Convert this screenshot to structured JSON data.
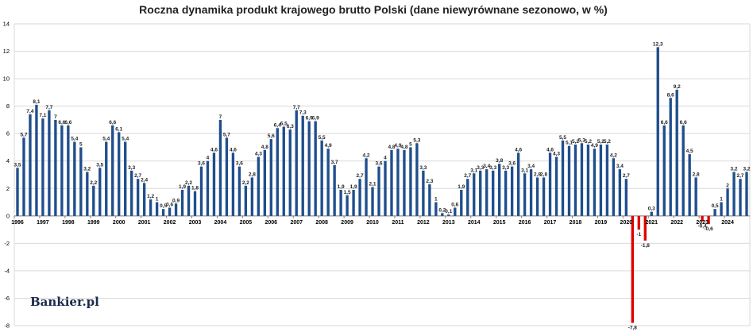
{
  "chart_data": {
    "type": "bar",
    "title": "Roczna dynamika produkt krajowego brutto Polski (dane niewyrównane sezonowo, w %)",
    "ylim": [
      -8,
      14
    ],
    "yticks": [
      -8,
      -6,
      -4,
      -2,
      0,
      2,
      4,
      6,
      8,
      10,
      12,
      14
    ],
    "grid": true,
    "colors": {
      "positive": "#1f4e8c",
      "negative": "#e00000"
    },
    "years": [
      "1996",
      "1997",
      "1998",
      "1999",
      "2000",
      "2001",
      "2002",
      "2003",
      "2004",
      "2005",
      "2006",
      "2007",
      "2008",
      "2009",
      "2010",
      "2011",
      "2012",
      "2013",
      "2014",
      "2015",
      "2016",
      "2017",
      "2018",
      "2019",
      "2020",
      "2021",
      "2022",
      "2023",
      "2024"
    ],
    "values": [
      3.5,
      5.7,
      7.4,
      8.1,
      7.1,
      7.7,
      7.0,
      6.6,
      6.6,
      5.4,
      5.0,
      3.2,
      2.2,
      3.5,
      5.4,
      6.6,
      6.1,
      5.4,
      3.3,
      2.7,
      2.4,
      1.2,
      1.0,
      0.5,
      0.6,
      0.9,
      1.9,
      2.2,
      1.8,
      3.6,
      4.0,
      4.6,
      7.0,
      5.7,
      4.6,
      3.6,
      2.2,
      2.8,
      4.3,
      4.8,
      5.6,
      6.4,
      6.5,
      6.3,
      7.7,
      7.3,
      6.9,
      6.9,
      5.5,
      4.9,
      3.7,
      1.9,
      1.5,
      1.9,
      2.7,
      4.2,
      2.1,
      3.6,
      4.0,
      4.8,
      4.9,
      4.8,
      5.0,
      5.3,
      3.3,
      2.3,
      1.0,
      0.2,
      0.1,
      0.6,
      1.9,
      2.7,
      3.1,
      3.3,
      3.4,
      3.3,
      3.8,
      3.3,
      3.6,
      4.6,
      3.1,
      3.4,
      2.8,
      2.8,
      4.6,
      4.3,
      5.5,
      5.1,
      5.2,
      5.3,
      5.2,
      4.9,
      5.2,
      5.2,
      4.2,
      3.4,
      2.7,
      -7.8,
      -1.0,
      -1.8,
      0.3,
      12.3,
      6.6,
      8.6,
      9.2,
      6.6,
      4.5,
      2.8,
      -0.4,
      -0.6,
      0.5,
      1.0,
      2.0,
      3.2,
      2.7,
      3.2
    ],
    "labels": [
      "3,5",
      "5,7",
      "7,4",
      "8,1",
      "7,1",
      "7,7",
      "7",
      "6,6",
      "6,6",
      "5,4",
      "5",
      "3,2",
      "2,2",
      "3,5",
      "5,4",
      "6,6",
      "6,1",
      "5,4",
      "3,3",
      "2,7",
      "2,4",
      "1,2",
      "1",
      "0,5",
      "0,6",
      "0,9",
      "1,9",
      "2,2",
      "1,8",
      "3,6",
      "4",
      "4,6",
      "7",
      "5,7",
      "4,6",
      "3,6",
      "2,2",
      "2,8",
      "4,3",
      "4,8",
      "5,6",
      "6,4",
      "6,5",
      "6,3",
      "7,7",
      "7,3",
      "6,9",
      "6,9",
      "5,5",
      "4,9",
      "3,7",
      "1,9",
      "1,5",
      "1,9",
      "2,7",
      "4,2",
      "2,1",
      "3,6",
      "4",
      "4,8",
      "4,9",
      "4,8",
      "5",
      "5,3",
      "3,3",
      "2,3",
      "1",
      "0,2",
      "0,1",
      "0,6",
      "1,9",
      "2,7",
      "3,1",
      "3,3",
      "3,4",
      "3,3",
      "3,8",
      "3,3",
      "3,6",
      "4,6",
      "3,1",
      "3,4",
      "2,8",
      "2,8",
      "4,6",
      "4,3",
      "5,5",
      "5,1",
      "5,2",
      "5,3",
      "5,2",
      "4,9",
      "5,2",
      "5,2",
      "4,2",
      "3,4",
      "2,7",
      "-7,8",
      "-1",
      "-1,8",
      "0,3",
      "12,3",
      "6,6",
      "8,6",
      "9,2",
      "6,6",
      "4,5",
      "2,8",
      "-0,4",
      "-0,6",
      "0,5",
      "1",
      "2",
      "3,2",
      "2,7",
      "3,2"
    ]
  },
  "branding": {
    "logo_text": "Bankier.pl"
  }
}
